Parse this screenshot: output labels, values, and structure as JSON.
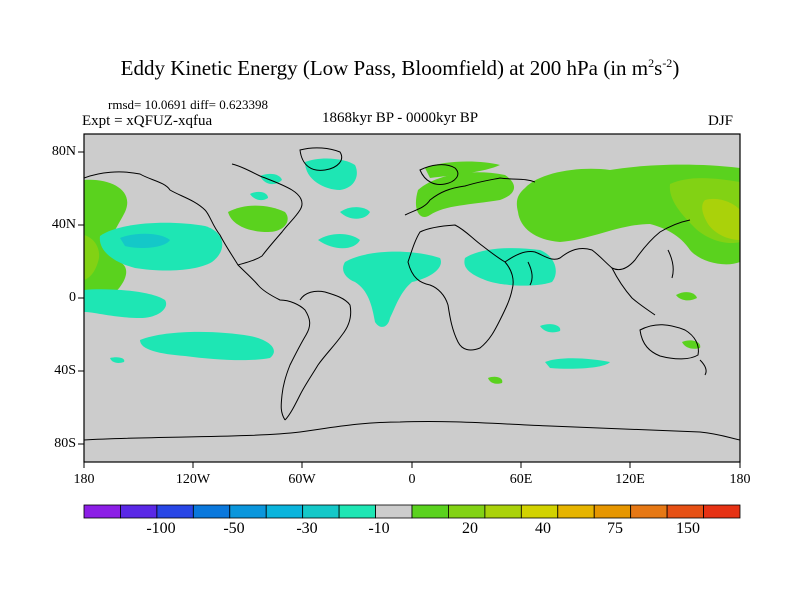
{
  "title": {
    "main": "Eddy Kinetic Energy (Low Pass, Bloomfield) at 200 hPa (in m",
    "sup1": "2",
    "mid": "s",
    "sup2": "-2",
    "end": ")"
  },
  "stats": "rmsd= 10.0691 diff= 0.623398",
  "experiment": "Expt = xQFUZ-xqfua",
  "period": "1868kyr BP - 0000kyr BP",
  "season": "DJF",
  "map": {
    "lat_labels": [
      "80N",
      "40N",
      "0",
      "40S",
      "80S"
    ],
    "lon_labels": [
      "180",
      "120W",
      "60W",
      "0",
      "60E",
      "120E",
      "180"
    ],
    "background_color": "#cccccc"
  },
  "colorbar": {
    "colors": [
      "#8c1ee6",
      "#5a28e6",
      "#2846e6",
      "#0a78dc",
      "#0a96dc",
      "#0ab4dc",
      "#14c8c8",
      "#1ee6b4",
      "#cccccc",
      "#5ad21e",
      "#82d214",
      "#aad20a",
      "#d2d200",
      "#e6b400",
      "#e69600",
      "#e67814",
      "#e65014",
      "#e63214"
    ],
    "labels": [
      "-100",
      "-50",
      "-30",
      "-10",
      "20",
      "40",
      "75",
      "150"
    ]
  }
}
